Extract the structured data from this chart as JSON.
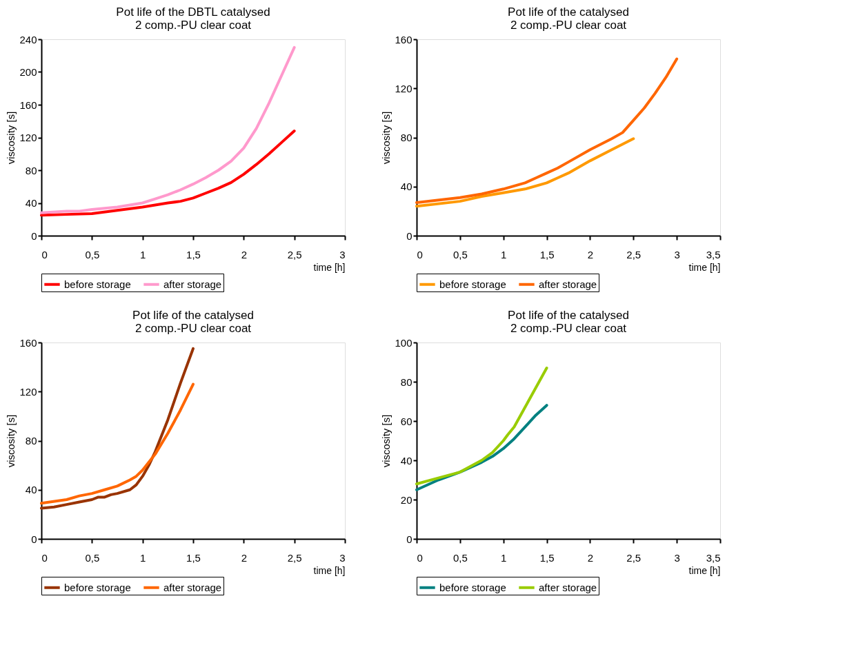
{
  "chart_data": [
    {
      "type": "line",
      "title": "Pot life of the DBTL catalysed\n2 comp.-PU clear coat",
      "xlabel": "time [h]",
      "ylabel": "viscosity [s]",
      "xlim": [
        0,
        3
      ],
      "ylim": [
        0,
        240
      ],
      "xticks": [
        0,
        {
          "value": 0.5,
          "label": "0,5"
        },
        1,
        {
          "value": 1.5,
          "label": "1,5"
        },
        2,
        {
          "value": 2.5,
          "label": "2,5"
        },
        3
      ],
      "yticks": [
        0,
        40,
        80,
        120,
        160,
        200,
        240
      ],
      "grid": false,
      "legend": "bottom",
      "marker": "none",
      "line_style": "solid",
      "series": [
        {
          "name": "before storage",
          "color": "#ff0000",
          "x": [
            0,
            0.25,
            0.5,
            0.75,
            1,
            1.25,
            1.375,
            1.5,
            1.625,
            1.75,
            1.875,
            2,
            2.125,
            2.25,
            2.375,
            2.5
          ],
          "values": [
            25,
            26,
            27,
            31,
            35,
            40,
            42,
            46,
            52,
            58,
            65,
            75,
            87,
            100,
            114,
            128
          ]
        },
        {
          "name": "after storage",
          "color": "#ff99cc",
          "x": [
            0,
            0.25,
            0.375,
            0.5,
            0.75,
            1,
            1.125,
            1.25,
            1.375,
            1.5,
            1.625,
            1.75,
            1.875,
            2,
            2.125,
            2.25,
            2.375,
            2.5
          ],
          "values": [
            28,
            30,
            30,
            32,
            35,
            40,
            45,
            50,
            56,
            63,
            71,
            80,
            91,
            107,
            131,
            162,
            196,
            230
          ]
        }
      ]
    },
    {
      "type": "line",
      "title": "Pot life of the catalysed\n2 comp.-PU clear coat",
      "xlabel": "time [h]",
      "ylabel": "viscosity [s]",
      "xlim": [
        0,
        3.5
      ],
      "ylim": [
        0,
        160
      ],
      "xticks": [
        0,
        {
          "value": 0.5,
          "label": "0,5"
        },
        1,
        {
          "value": 1.5,
          "label": "1,5"
        },
        2,
        {
          "value": 2.5,
          "label": "2,5"
        },
        3,
        {
          "value": 3.5,
          "label": "3,5"
        }
      ],
      "yticks": [
        0,
        40,
        80,
        120,
        160
      ],
      "grid": false,
      "legend": "bottom",
      "marker": "none",
      "line_style": "solid",
      "series": [
        {
          "name": "before storage",
          "color": "#ff9900",
          "x": [
            0,
            0.5,
            0.75,
            1,
            1.25,
            1.5,
            1.625,
            1.75,
            1.875,
            2,
            2.25,
            2.5
          ],
          "values": [
            24,
            28,
            32,
            35,
            38,
            43,
            47,
            51,
            56,
            61,
            70,
            79
          ]
        },
        {
          "name": "after storage",
          "color": "#ff6600",
          "x": [
            0,
            0.5,
            0.75,
            1,
            1.25,
            1.375,
            1.5,
            1.625,
            1.75,
            2,
            2.25,
            2.375,
            2.5,
            2.625,
            2.75,
            2.875,
            3
          ],
          "values": [
            27,
            31,
            34,
            38,
            43,
            47,
            51,
            55,
            60,
            70,
            79,
            84,
            94,
            104,
            116,
            129,
            144
          ]
        }
      ]
    },
    {
      "type": "line",
      "title": "Pot life of the catalysed\n2 comp.-PU clear coat",
      "xlabel": "time [h]",
      "ylabel": "viscosity [s]",
      "xlim": [
        0,
        3
      ],
      "ylim": [
        0,
        160
      ],
      "xticks": [
        0,
        {
          "value": 0.5,
          "label": "0,5"
        },
        1,
        {
          "value": 1.5,
          "label": "1,5"
        },
        2,
        {
          "value": 2.5,
          "label": "2,5"
        },
        3
      ],
      "yticks": [
        0,
        40,
        80,
        120,
        160
      ],
      "grid": false,
      "legend": "bottom",
      "marker": "none",
      "line_style": "solid",
      "series": [
        {
          "name": "before storage",
          "color": "#993300",
          "x": [
            0,
            0.125,
            0.25,
            0.375,
            0.5,
            0.5625,
            0.625,
            0.6875,
            0.75,
            0.875,
            0.9375,
            1,
            1.0625,
            1.125,
            1.25,
            1.375,
            1.4375,
            1.5
          ],
          "values": [
            25,
            26,
            28,
            30,
            32,
            34,
            34,
            36,
            37,
            40,
            44,
            51,
            60,
            71,
            97,
            127,
            141,
            155
          ]
        },
        {
          "name": "after storage",
          "color": "#ff6600",
          "x": [
            0,
            0.25,
            0.375,
            0.5,
            0.625,
            0.75,
            0.875,
            0.9375,
            1,
            1.125,
            1.25,
            1.375,
            1.5
          ],
          "values": [
            29,
            32,
            35,
            37,
            40,
            43,
            48,
            51,
            56,
            69,
            86,
            105,
            126
          ]
        }
      ]
    },
    {
      "type": "line",
      "title": "Pot life of the catalysed\n2 comp.-PU clear coat",
      "xlabel": "time [h]",
      "ylabel": "viscosity [s]",
      "xlim": [
        0,
        3.5
      ],
      "ylim": [
        0,
        100
      ],
      "xticks": [
        0,
        {
          "value": 0.5,
          "label": "0,5"
        },
        1,
        {
          "value": 1.5,
          "label": "1,5"
        },
        2,
        {
          "value": 2.5,
          "label": "2,5"
        },
        3,
        {
          "value": 3.5,
          "label": "3,5"
        }
      ],
      "yticks": [
        0,
        20,
        40,
        60,
        80,
        100
      ],
      "grid": false,
      "legend": "bottom",
      "marker": "none",
      "line_style": "solid",
      "series": [
        {
          "name": "before storage",
          "color": "#008080",
          "x": [
            0,
            0.25,
            0.5,
            0.75,
            0.875,
            1,
            1.125,
            1.25,
            1.375,
            1.5
          ],
          "values": [
            25,
            30,
            34,
            39,
            42,
            46,
            51,
            57,
            63,
            68
          ]
        },
        {
          "name": "after storage",
          "color": "#99cc00",
          "x": [
            0,
            0.25,
            0.5,
            0.75,
            0.875,
            1,
            1.05,
            1.125,
            1.25,
            1.375,
            1.5
          ],
          "values": [
            28,
            31,
            34,
            40,
            44,
            50,
            53,
            57,
            67,
            77,
            87
          ]
        }
      ]
    }
  ]
}
